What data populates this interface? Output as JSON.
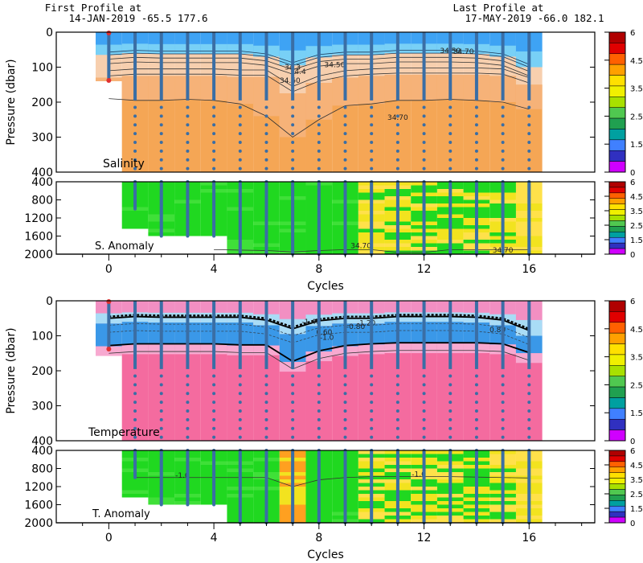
{
  "header": {
    "first_line1": "First Profile at",
    "first_line2": "14-JAN-2019    -65.5  177.6",
    "last_line1": "Last Profile at",
    "last_line2": "17-MAY-2019    -66.0  182.1"
  },
  "colorbar_ticks": [
    "6",
    "4.5",
    "3.5",
    "2.5",
    "1.5",
    "0"
  ],
  "colorbar_colors": [
    "#b00000",
    "#e00000",
    "#ff6000",
    "#ffa000",
    "#ffe000",
    "#f0f000",
    "#a8e000",
    "#50c850",
    "#20a050",
    "#00a0a0",
    "#4080ff",
    "#3030c0",
    "#d000ff"
  ],
  "x_axis": {
    "label": "Cycles",
    "ticks": [
      "0",
      "4",
      "8",
      "12",
      "16"
    ]
  },
  "panels": [
    {
      "id": "salinity",
      "label": "Salinity",
      "ylabel": "Pressure (dbar)",
      "yticks": [
        "0",
        "100",
        "200",
        "300",
        "400"
      ],
      "contour_labels": [
        "34.50",
        "34.70",
        "34.3",
        "34.4",
        "34.50",
        "34.60",
        "34.70"
      ]
    },
    {
      "id": "s-anomaly",
      "label": "S. Anomaly",
      "yticks": [
        "400",
        "800",
        "1200",
        "1600",
        "2000"
      ],
      "contour_labels": [
        "34.70",
        "34.70"
      ]
    },
    {
      "id": "temperature",
      "label": "Temperature",
      "ylabel": "Pressure (dbar)",
      "yticks": [
        "0",
        "100",
        "200",
        "300",
        "400"
      ],
      "contour_labels": [
        "-1.40",
        "-1.20",
        "-0.80",
        "0.60",
        "0.80",
        "-1.0"
      ]
    },
    {
      "id": "t-anomaly",
      "label": "T. Anomaly",
      "yticks": [
        "400",
        "800",
        "1200",
        "1600",
        "2000"
      ],
      "contour_labels": [
        "-1.0",
        "-1.0"
      ]
    }
  ],
  "chart_data": {
    "type": "heatmap",
    "title": "",
    "xlabel": "Cycles",
    "x_range": [
      -2,
      18.5
    ],
    "profile_cycles": [
      0,
      1,
      2,
      3,
      4,
      5,
      6,
      7,
      8,
      9,
      10,
      11,
      12,
      13,
      14,
      15,
      16
    ],
    "first_profile": {
      "date": "14-JAN-2019",
      "lat": -65.5,
      "lon": 177.6
    },
    "last_profile": {
      "date": "17-MAY-2019",
      "lat": -66.0,
      "lon": 182.1
    },
    "upper_ylim": [
      0,
      400
    ],
    "deep_ylim": [
      400,
      2000
    ],
    "mixed_layer_depth_dbar": [
      65,
      60,
      62,
      62,
      62,
      62,
      70,
      95,
      72,
      65,
      65,
      60,
      60,
      60,
      62,
      70,
      100
    ],
    "halocline_bottom_dbar": [
      130,
      125,
      125,
      125,
      125,
      128,
      128,
      175,
      145,
      130,
      125,
      122,
      122,
      122,
      122,
      125,
      150
    ],
    "contour_34_70_dbar": [
      190,
      195,
      195,
      192,
      195,
      205,
      240,
      300,
      250,
      210,
      205,
      195,
      195,
      192,
      195,
      200,
      220
    ],
    "colorbar_levels": [
      0,
      1.5,
      2.5,
      3.5,
      4.5,
      6
    ]
  }
}
